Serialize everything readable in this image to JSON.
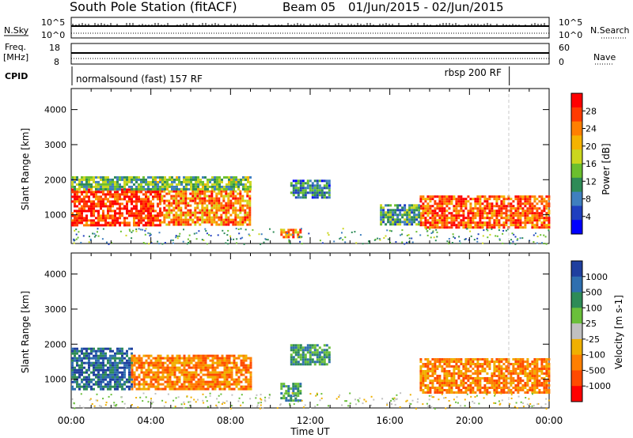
{
  "header": {
    "station": "South Pole Station (fitACF)",
    "beam": "Beam 05",
    "date_range": "01/Jun/2015 - 02/Jun/2015"
  },
  "side_labels": {
    "n_sky": "N.Sky",
    "n_search": "N.Search",
    "freq_line1": "Freq.",
    "freq_line2": "[MHz]",
    "nave": "Nave",
    "cpid": "CPID"
  },
  "scan_panel": {
    "left_ticks": [
      "10^5",
      "10^0"
    ],
    "right_ticks": [
      "10^5",
      "10^0"
    ]
  },
  "freq_panel": {
    "left_ticks": [
      "18",
      "8"
    ],
    "right_ticks": [
      "60",
      "0"
    ]
  },
  "cpid_panel": {
    "programs": [
      {
        "label": "normalsound (fast) 157 RF",
        "start_hour": 0
      },
      {
        "label": "rbsp 200 RF",
        "start_hour": 22
      }
    ]
  },
  "power_panel": {
    "ylabel": "Slant Range [km]",
    "colorbar_label": "Power [dB]",
    "colorbar_ticks": [
      "28",
      "24",
      "20",
      "16",
      "12",
      "8",
      "4"
    ],
    "colors": [
      "#ff0000",
      "#ff3a00",
      "#ff7f00",
      "#f5b300",
      "#cbd61e",
      "#6bbf2e",
      "#2e8b57",
      "#3f7fbf",
      "#1f3fbf",
      "#0000ff"
    ]
  },
  "velocity_panel": {
    "ylabel": "Slant Range [km]",
    "colorbar_label": "Velocity [m s-1]",
    "colorbar_ticks": [
      "1000",
      "500",
      "100",
      "25",
      "-25",
      "-100",
      "-500",
      "-1000"
    ],
    "colors": [
      "#1f3f9f",
      "#2f6faf",
      "#2e8b57",
      "#6abf3a",
      "#c0c0c0",
      "#f0b000",
      "#ff7f00",
      "#ff4a00",
      "#ff0000"
    ]
  },
  "xaxis": {
    "label": "Time UT",
    "ticks": [
      "00:00",
      "04:00",
      "08:00",
      "12:00",
      "16:00",
      "20:00",
      "00:00"
    ]
  },
  "chart_data": [
    {
      "type": "heatmap",
      "title": "",
      "xlabel": "Time UT",
      "ylabel": "Slant Range [km]",
      "x_range_hours": [
        0,
        24
      ],
      "ylim": [
        180,
        4600
      ],
      "y_ticks": [
        1000,
        2000,
        3000,
        4000
      ],
      "z_label": "Power [dB]",
      "z_ticks": [
        4,
        8,
        12,
        16,
        20,
        24,
        28
      ],
      "echo_regions": [
        {
          "t0": 0.0,
          "t1": 4.5,
          "r0": 700,
          "r1": 1750,
          "power": 26
        },
        {
          "t0": 4.5,
          "t1": 9.0,
          "r0": 750,
          "r1": 1700,
          "power": 22
        },
        {
          "t0": 0.0,
          "t1": 9.0,
          "r0": 1700,
          "r1": 2100,
          "power": 12
        },
        {
          "t0": 11.0,
          "t1": 13.0,
          "r0": 1500,
          "r1": 2000,
          "power": 8
        },
        {
          "t0": 10.5,
          "t1": 11.5,
          "r0": 350,
          "r1": 600,
          "power": 22
        },
        {
          "t0": 17.5,
          "t1": 24.0,
          "r0": 650,
          "r1": 1550,
          "power": 24
        },
        {
          "t0": 15.5,
          "t1": 17.5,
          "r0": 700,
          "r1": 1300,
          "power": 10
        }
      ]
    },
    {
      "type": "heatmap",
      "title": "",
      "xlabel": "Time UT",
      "ylabel": "Slant Range [km]",
      "x_range_hours": [
        0,
        24
      ],
      "ylim": [
        180,
        4600
      ],
      "y_ticks": [
        1000,
        2000,
        3000,
        4000
      ],
      "z_label": "Velocity [m s-1]",
      "z_ticks": [
        -1000,
        -500,
        -100,
        -25,
        25,
        100,
        500,
        1000
      ],
      "echo_regions": [
        {
          "t0": 0.0,
          "t1": 3.0,
          "r0": 700,
          "r1": 1900,
          "velocity": 300
        },
        {
          "t0": 3.0,
          "t1": 9.0,
          "r0": 700,
          "r1": 1700,
          "velocity": -300
        },
        {
          "t0": 11.0,
          "t1": 13.0,
          "r0": 1400,
          "r1": 2000,
          "velocity": 100
        },
        {
          "t0": 10.5,
          "t1": 11.5,
          "r0": 400,
          "r1": 900,
          "velocity": 100
        },
        {
          "t0": 17.5,
          "t1": 24.0,
          "r0": 600,
          "r1": 1600,
          "velocity": -200
        }
      ]
    }
  ]
}
